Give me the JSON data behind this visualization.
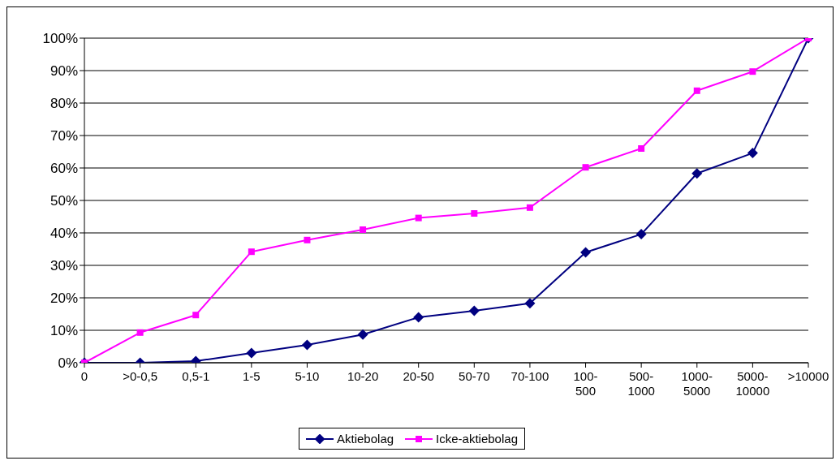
{
  "chart_data": {
    "type": "line",
    "categories": [
      "0",
      ">0-0,5",
      "0,5-1",
      "1-5",
      "5-10",
      "10-20",
      "20-50",
      "50-70",
      "70-100",
      "100-500",
      "500-1000",
      "1000-5000",
      "5000-10000",
      ">10000"
    ],
    "series": [
      {
        "name": "Aktiebolag",
        "color": "#000080",
        "marker": "diamond",
        "values": [
          0,
          0,
          0.5,
          3,
          5.5,
          8.7,
          14,
          16,
          18.3,
          34,
          39.6,
          58.3,
          64.6,
          100
        ]
      },
      {
        "name": "Icke-aktiebolag",
        "color": "#ff00ff",
        "marker": "square",
        "values": [
          0,
          9.3,
          14.7,
          34.2,
          37.8,
          41,
          44.6,
          46,
          47.8,
          60.2,
          66,
          83.8,
          89.7,
          100
        ]
      }
    ],
    "ylim": [
      0,
      100
    ],
    "yticks": [
      {
        "value": 0,
        "label": "0%"
      },
      {
        "value": 10,
        "label": "10%"
      },
      {
        "value": 20,
        "label": "20%"
      },
      {
        "value": 30,
        "label": "30%"
      },
      {
        "value": 40,
        "label": "40%"
      },
      {
        "value": 50,
        "label": "50%"
      },
      {
        "value": 60,
        "label": "60%"
      },
      {
        "value": 70,
        "label": "70%"
      },
      {
        "value": 80,
        "label": "80%"
      },
      {
        "value": 90,
        "label": "90%"
      },
      {
        "value": 100,
        "label": "100%"
      }
    ],
    "grid": "y",
    "legend": "bottom",
    "line_style": "solid"
  }
}
